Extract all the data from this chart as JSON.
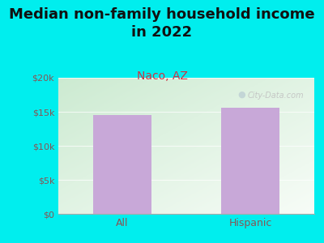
{
  "title": "Median non-family household income\nin 2022",
  "subtitle": "Naco, AZ",
  "categories": [
    "All",
    "Hispanic"
  ],
  "values": [
    14500,
    15600
  ],
  "bar_color": "#c8a8d8",
  "ylim": [
    0,
    20000
  ],
  "yticks": [
    0,
    5000,
    10000,
    15000,
    20000
  ],
  "ytick_labels": [
    "$0",
    "$5k",
    "$10k",
    "$15k",
    "$20k"
  ],
  "background_color": "#00eeee",
  "title_fontsize": 13,
  "subtitle_fontsize": 10,
  "subtitle_color": "#cc3344",
  "tick_color": "#885555",
  "watermark": "City-Data.com",
  "watermark_color": "#c0c0c0",
  "grid_color": "#ffffff",
  "title_color": "#111111"
}
